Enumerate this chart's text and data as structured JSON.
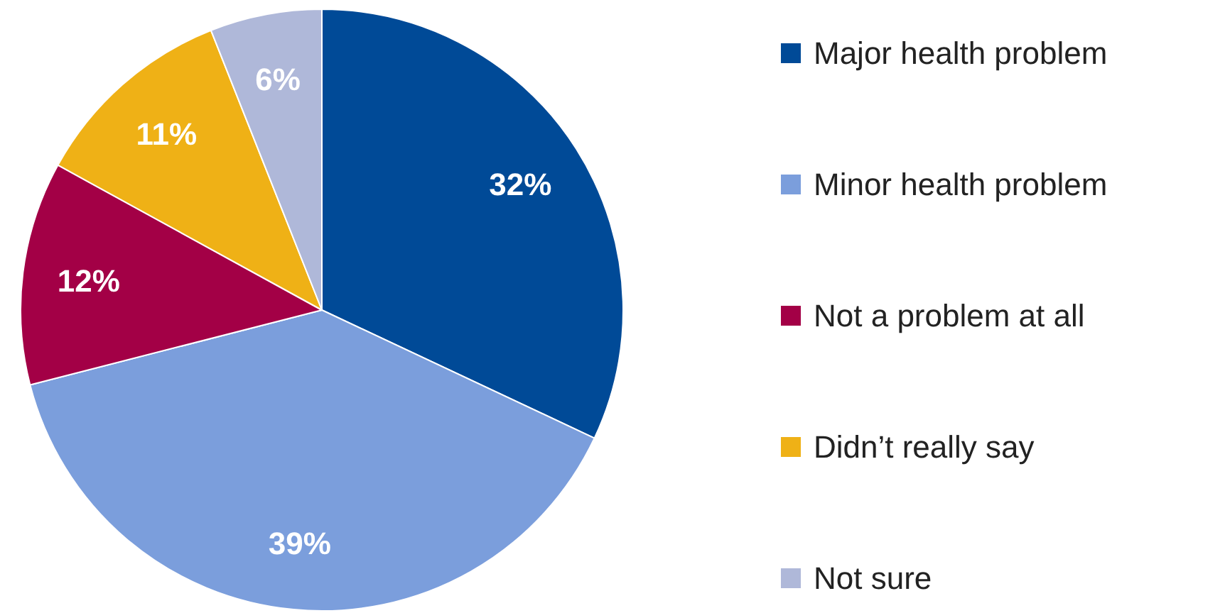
{
  "chart_data": {
    "type": "pie",
    "categories": [
      "Major health problem",
      "Minor health problem",
      "Not a problem at all",
      "Didn’t really say",
      "Not sure"
    ],
    "values": [
      32,
      39,
      12,
      11,
      6
    ],
    "value_labels": [
      "32%",
      "39%",
      "12%",
      "11%",
      "6%"
    ],
    "colors": [
      "#004a97",
      "#7b9edc",
      "#a30046",
      "#efb116",
      "#afb8d9"
    ],
    "legend": "right"
  }
}
